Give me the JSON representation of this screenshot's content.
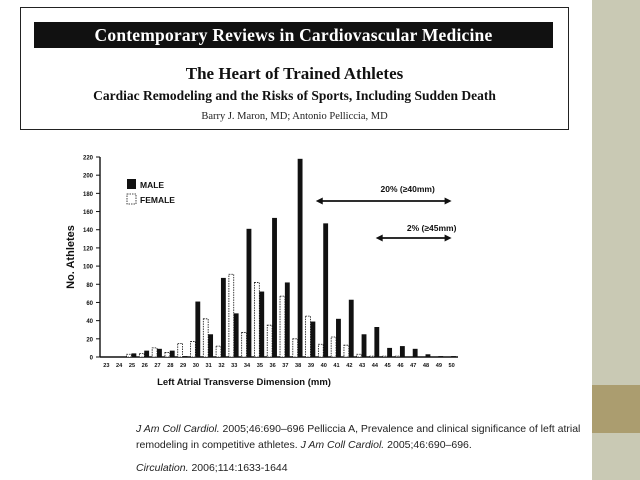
{
  "header": {
    "journal": "Contemporary Reviews in Cardiovascular Medicine",
    "title": "The Heart of Trained Athletes",
    "subtitle": "Cardiac Remodeling and the Risks of Sports, Including Sudden Death",
    "authors": "Barry J. Maron, MD; Antonio Pelliccia, MD"
  },
  "chart_data": {
    "type": "bar",
    "xlabel": "Left Atrial Transverse Dimension (mm)",
    "ylabel": "No. Athletes",
    "ylim": [
      0,
      220
    ],
    "yticks": [
      0,
      20,
      40,
      60,
      80,
      100,
      120,
      140,
      160,
      180,
      200,
      220
    ],
    "categories": [
      "23",
      "24",
      "25",
      "26",
      "27",
      "28",
      "29",
      "30",
      "31",
      "32",
      "33",
      "34",
      "35",
      "36",
      "37",
      "38",
      "39",
      "40",
      "41",
      "42",
      "43",
      "44",
      "45",
      "46",
      "47",
      "48",
      "49",
      "50"
    ],
    "series": [
      {
        "name": "MALE",
        "color": "#111111",
        "values": [
          0,
          0,
          4,
          7,
          9,
          7,
          1,
          61,
          25,
          87,
          48,
          141,
          72,
          153,
          82,
          218,
          39,
          147,
          42,
          63,
          25,
          33,
          10,
          12,
          9,
          3,
          1,
          1
        ]
      },
      {
        "name": "FEMALE",
        "color": "#ffffff",
        "values": [
          0,
          0,
          3,
          4,
          10,
          5,
          15,
          17,
          42,
          12,
          91,
          27,
          82,
          35,
          67,
          20,
          45,
          14,
          22,
          13,
          3,
          1,
          1,
          1,
          0,
          0,
          0,
          0
        ]
      }
    ],
    "legend": "top-left",
    "annotations": [
      {
        "text": "20% (≥40mm)",
        "x_from": "40",
        "x_to": "50"
      },
      {
        "text": "2% (≥45mm)",
        "x_from": "45",
        "x_to": "50"
      }
    ]
  },
  "citations": {
    "line1_journal": "J Am Coll Cardiol.",
    "line1_text": " 2005;46:690–696 Pelliccia A, Prevalence and clinical significance of left atrial remodeling in competitive athletes. ",
    "line1_journal2": "J Am Coll Cardiol.",
    "line1_end": " 2005;46:690–696.",
    "line2_journal": "Circulation.",
    "line2_text": " 2006;114:1633-1644"
  }
}
